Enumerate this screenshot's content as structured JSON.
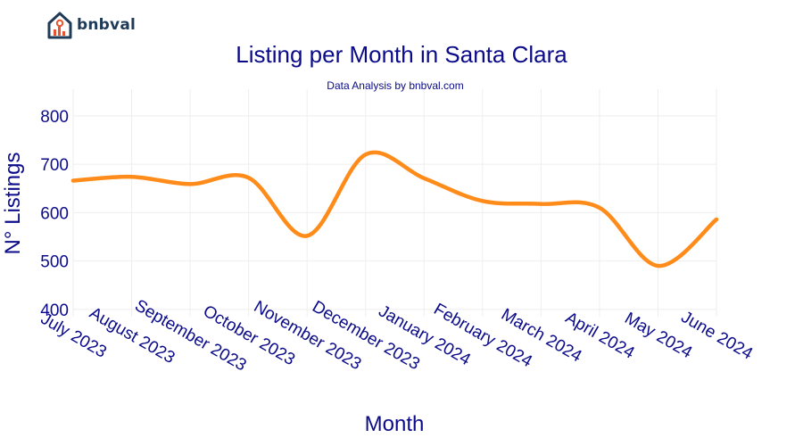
{
  "brand": {
    "name": "bnbval",
    "logo_icon": "house-chart-icon",
    "color": "#1f3b57",
    "accent": "#e8542f"
  },
  "chart_data": {
    "type": "line",
    "title": "Listing per Month in Santa Clara",
    "subtitle": "Data Analysis by bnbval.com",
    "xlabel": "Month",
    "ylabel": "N° Listings",
    "categories": [
      "July 2023",
      "August 2023",
      "September 2023",
      "October 2023",
      "November 2023",
      "December 2023",
      "January 2024",
      "February 2024",
      "March 2024",
      "April 2024",
      "May 2024",
      "June 2024"
    ],
    "series": [
      {
        "values": [
          666,
          674,
          659,
          672,
          552,
          720,
          671,
          624,
          618,
          610,
          490,
          586
        ],
        "color": "#ff8c1a"
      }
    ],
    "yticks": [
      400,
      500,
      600,
      700,
      800
    ],
    "ylim": [
      385,
      855
    ],
    "grid": true,
    "line_shape": "spline"
  }
}
